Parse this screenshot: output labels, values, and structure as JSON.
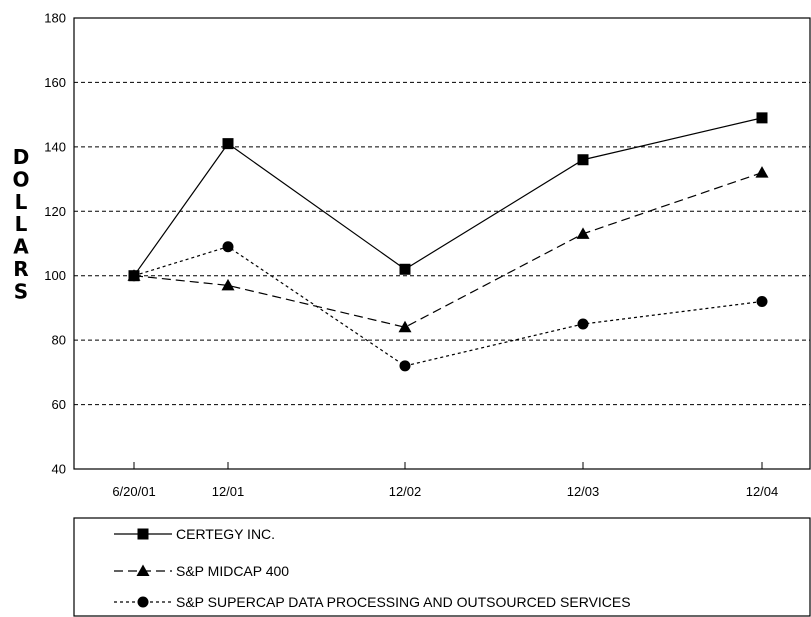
{
  "chart_data": {
    "type": "line",
    "title": "",
    "xlabel": "",
    "ylabel": "DOLLARS",
    "ylim": [
      40,
      180
    ],
    "yticks": [
      40,
      60,
      80,
      100,
      120,
      140,
      160,
      180
    ],
    "x": [
      "6/20/01",
      "12/01",
      "12/02",
      "12/03",
      "12/04"
    ],
    "grid": "horizontal dashed",
    "legend_position": "bottom",
    "series": [
      {
        "name": "CERTEGY INC.",
        "marker": "square",
        "line": "solid",
        "values": [
          100,
          141,
          102,
          136,
          149
        ]
      },
      {
        "name": "S&P MIDCAP 400",
        "marker": "triangle",
        "line": "dashed",
        "values": [
          100,
          97,
          84,
          113,
          132
        ]
      },
      {
        "name": "S&P SUPERCAP DATA PROCESSING AND OUTSOURCED SERVICES",
        "marker": "circle",
        "line": "dotted",
        "values": [
          100,
          109,
          72,
          85,
          92
        ]
      }
    ]
  }
}
